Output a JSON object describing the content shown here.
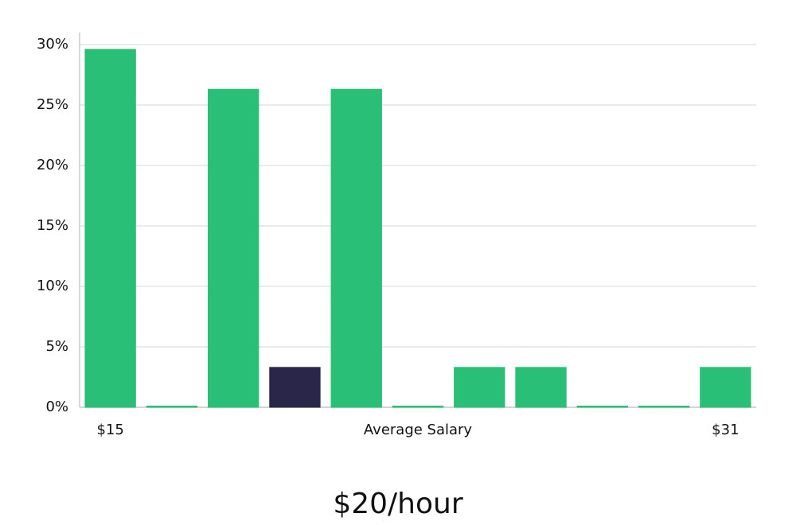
{
  "chart_data": {
    "type": "bar",
    "title": "$20/hour",
    "x_label": "Average Salary",
    "categories": [
      "$15",
      null,
      null,
      null,
      null,
      null,
      null,
      null,
      null,
      null,
      "$31"
    ],
    "values": [
      29.6,
      0,
      26.3,
      3.3,
      26.3,
      0,
      3.3,
      3.3,
      0,
      0,
      3.3
    ],
    "colors": [
      "#2abf76",
      "#2abf76",
      "#2abf76",
      "#29264a",
      "#2abf76",
      "#2abf76",
      "#2abf76",
      "#2abf76",
      "#2abf76",
      "#2abf76",
      "#2abf76"
    ],
    "ylim": [
      0,
      31
    ],
    "yticks": [
      {
        "value": 0,
        "label": "0%"
      },
      {
        "value": 5,
        "label": "5%"
      },
      {
        "value": 10,
        "label": "10%"
      },
      {
        "value": 15,
        "label": "15%"
      },
      {
        "value": 20,
        "label": "20%"
      },
      {
        "value": 25,
        "label": "25%"
      },
      {
        "value": 30,
        "label": "30%"
      }
    ],
    "grid": true
  }
}
